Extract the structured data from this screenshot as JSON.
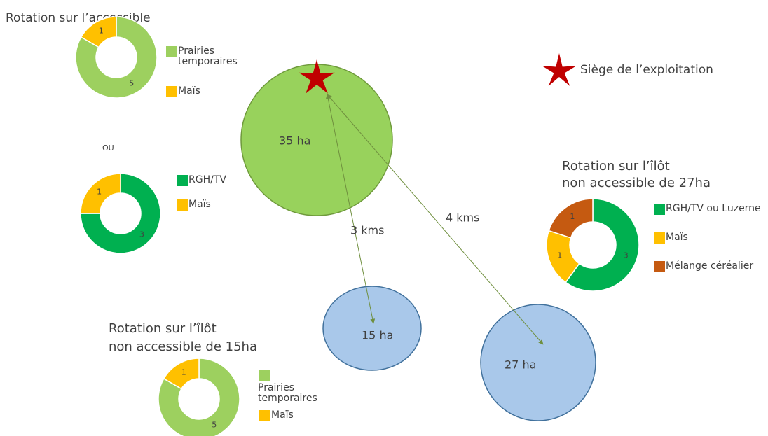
{
  "headquarters_legend": "Siège de l’exploitation",
  "separator": "OU",
  "donuts": [
    {
      "title": [
        "Rotation sur l’accessible"
      ],
      "segments": [
        {
          "label": "Prairies temporaires",
          "value": 5,
          "color": "#9dd05f"
        },
        {
          "label": "Maïs",
          "value": 1,
          "color": "#ffc000"
        }
      ]
    },
    {
      "title": [],
      "segments": [
        {
          "label": "RGH/TV",
          "value": 3,
          "color": "#00b050"
        },
        {
          "label": "Maïs",
          "value": 1,
          "color": "#ffc000"
        }
      ]
    },
    {
      "title": [
        "Rotation sur l’îlôt",
        "non accessible de 27ha"
      ],
      "segments": [
        {
          "label": "RGH/TV ou Luzerne",
          "value": 3,
          "color": "#00b050"
        },
        {
          "label": "Maïs",
          "value": 1,
          "color": "#ffc000"
        },
        {
          "label": "Mélange céréalier",
          "value": 1,
          "color": "#c55a11"
        }
      ]
    },
    {
      "title": [
        "Rotation sur l’îlôt",
        "non accessible de 15ha"
      ],
      "segments": [
        {
          "label": "Prairies temporaires",
          "value": 5,
          "color": "#9dd05f"
        },
        {
          "label": "Maïs",
          "value": 1,
          "color": "#ffc000"
        }
      ]
    }
  ],
  "parcels": [
    {
      "label": "35 ha"
    },
    {
      "label": "15 ha"
    },
    {
      "label": "27 ha"
    }
  ],
  "distances": [
    "3 kms",
    "4 kms"
  ]
}
